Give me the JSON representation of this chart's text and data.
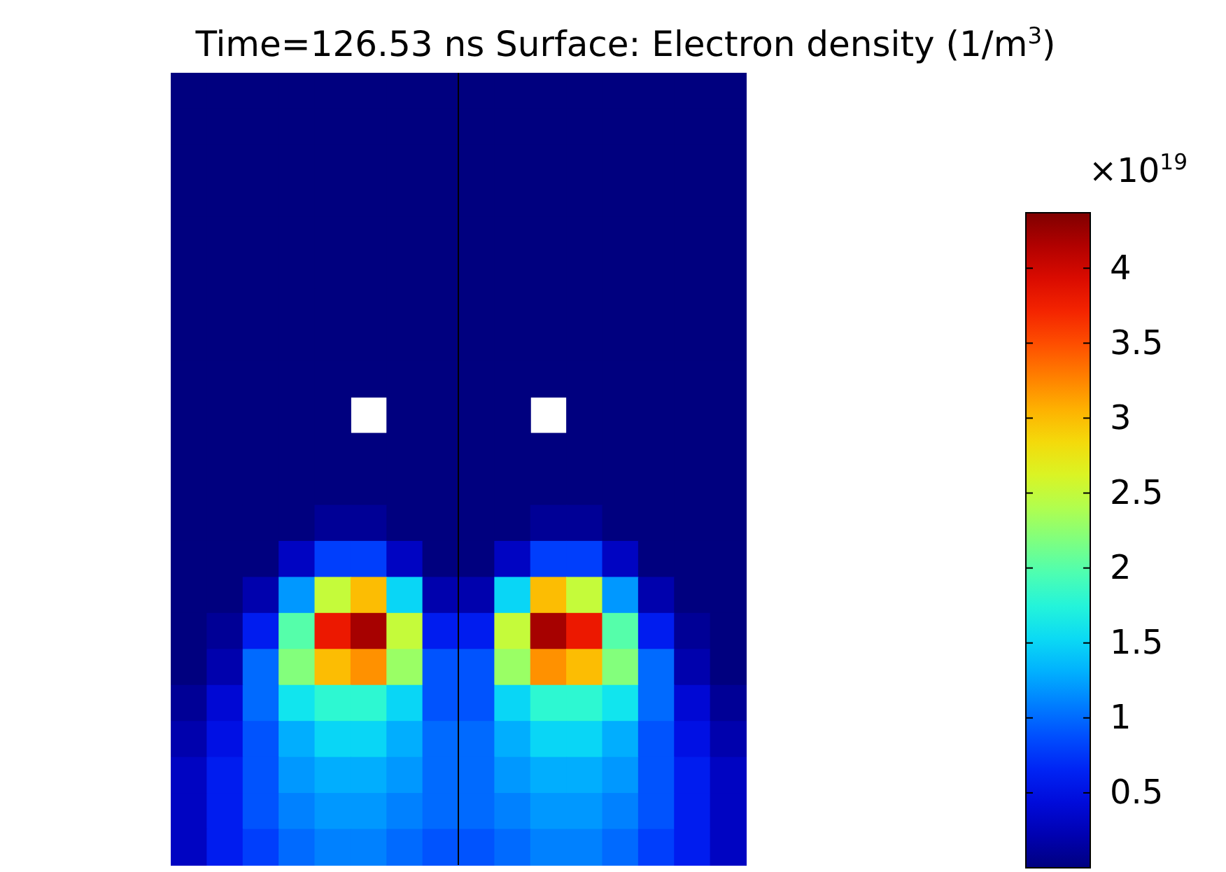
{
  "chart_data": {
    "type": "heatmap",
    "title": "Time=126.53 ns   Surface: Electron density (1/m$^{3}$)",
    "clabel": "×10$^{19}$",
    "categories": [
      null,
      null,
      null,
      null,
      null,
      null,
      null,
      null,
      null,
      null,
      null,
      null,
      null,
      null,
      null,
      null
    ],
    "y_categories": [
      null,
      null,
      null,
      null,
      null,
      null,
      null,
      null,
      null,
      null,
      null,
      null,
      null,
      null,
      null,
      null,
      null,
      null,
      null,
      null,
      null,
      null
    ],
    "clim": [
      0,
      4.37
    ],
    "cticks": [
      0.5,
      1,
      1.5,
      2,
      2.5,
      3,
      3.5,
      4
    ],
    "cells": [
      [
        0,
        0,
        0,
        0,
        0,
        0,
        0,
        0,
        0,
        0,
        0,
        0,
        0,
        0,
        0,
        0
      ],
      [
        0,
        0,
        0,
        0,
        0,
        0,
        0,
        0,
        0,
        0,
        0,
        0,
        0,
        0,
        0,
        0
      ],
      [
        0,
        0,
        0,
        0,
        0,
        0,
        0,
        0,
        0,
        0,
        0,
        0,
        0,
        0,
        0,
        0
      ],
      [
        0,
        0,
        0,
        0,
        0,
        0,
        0,
        0,
        0,
        0,
        0,
        0,
        0,
        0,
        0,
        0
      ],
      [
        0,
        0,
        0,
        0,
        0,
        0,
        0,
        0,
        0,
        0,
        0,
        0,
        0,
        0,
        0,
        0
      ],
      [
        0,
        0,
        0,
        0,
        0,
        0,
        0,
        0,
        0,
        0,
        0,
        0,
        0,
        0,
        0,
        0
      ],
      [
        0,
        0,
        0,
        0,
        0,
        0,
        0,
        0,
        0,
        0,
        0,
        0,
        0,
        0,
        0,
        0
      ],
      [
        0,
        0,
        0,
        0,
        0,
        0,
        0,
        0,
        0,
        0,
        0,
        0,
        0,
        0,
        0,
        0
      ],
      [
        0,
        0,
        0,
        0,
        0,
        0,
        0,
        0,
        0,
        0,
        0,
        0,
        0,
        0,
        0,
        0
      ],
      [
        0,
        0,
        0,
        0,
        0,
        null,
        0,
        0,
        0,
        0,
        null,
        0,
        0,
        0,
        0,
        0
      ],
      [
        0,
        0,
        0,
        0,
        0,
        0,
        0,
        0,
        0,
        0,
        0,
        0,
        0,
        0,
        0,
        0
      ],
      [
        0,
        0,
        0,
        0,
        0,
        0,
        0,
        0,
        0,
        0,
        0,
        0,
        0,
        0,
        0,
        0
      ],
      [
        0,
        0,
        0,
        0,
        0.1,
        0.1,
        0,
        0,
        0,
        0,
        0.1,
        0.1,
        0,
        0,
        0,
        0
      ],
      [
        0,
        0,
        0,
        0.3,
        0.8,
        0.8,
        0.3,
        0,
        0,
        0.3,
        0.8,
        0.8,
        0.3,
        0,
        0,
        0
      ],
      [
        0,
        0,
        0.2,
        1.2,
        2.5,
        3,
        1.5,
        0.2,
        0.2,
        1.5,
        3,
        2.5,
        1.2,
        0.2,
        0,
        0
      ],
      [
        0,
        0.1,
        0.6,
        2,
        3.8,
        4.2,
        2.5,
        0.6,
        0.6,
        2.5,
        4.2,
        3.8,
        2,
        0.6,
        0.1,
        0
      ],
      [
        0,
        0.2,
        1,
        2.2,
        3,
        3.2,
        2.3,
        0.9,
        0.9,
        2.3,
        3.2,
        3,
        2.2,
        1,
        0.2,
        0
      ],
      [
        0.1,
        0.4,
        1,
        1.6,
        1.8,
        1.8,
        1.5,
        0.9,
        0.9,
        1.5,
        1.8,
        1.8,
        1.6,
        1,
        0.4,
        0.1
      ],
      [
        0.2,
        0.5,
        0.9,
        1.3,
        1.5,
        1.5,
        1.3,
        1,
        1,
        1.3,
        1.5,
        1.5,
        1.3,
        0.9,
        0.5,
        0.2
      ],
      [
        0.3,
        0.6,
        0.9,
        1.2,
        1.3,
        1.3,
        1.2,
        1,
        1,
        1.2,
        1.3,
        1.3,
        1.2,
        0.9,
        0.6,
        0.3
      ],
      [
        0.3,
        0.6,
        0.9,
        1.1,
        1.2,
        1.2,
        1.1,
        1,
        1,
        1.1,
        1.2,
        1.2,
        1.1,
        0.9,
        0.6,
        0.3
      ],
      [
        0.3,
        0.6,
        0.8,
        1,
        1.1,
        1.1,
        1,
        0.9,
        0.9,
        1,
        1.1,
        1.1,
        1,
        0.8,
        0.6,
        0.3
      ]
    ]
  }
}
